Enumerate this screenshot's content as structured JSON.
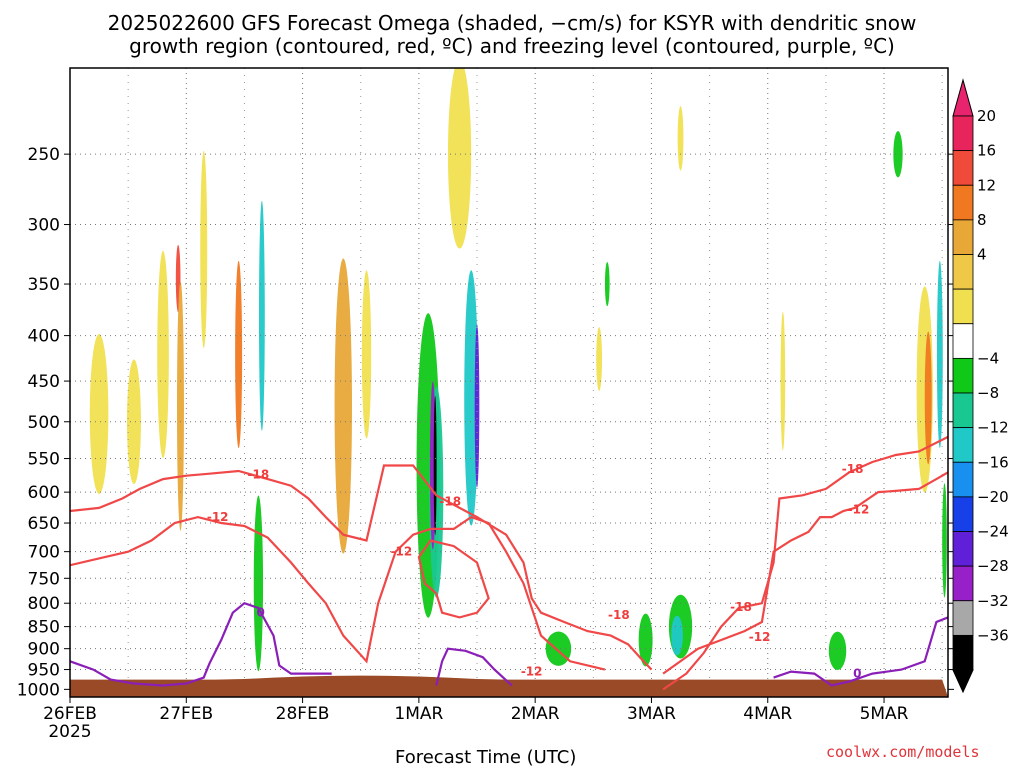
{
  "chart_data": {
    "type": "heatmap",
    "title_line1": "2025022600 GFS Forecast Omega (shaded, −cm/s) for KSYR with dendritic snow",
    "title_line2": "growth region (contoured, red, ºC) and freezing level (contoured, purple, ºC)",
    "xlabel": "Forecast Time (UTC)",
    "ylabel": "",
    "credit": "coolwx.com/models",
    "x_ticks": [
      "26FEB",
      "27FEB",
      "28FEB",
      "1MAR",
      "2MAR",
      "3MAR",
      "4MAR",
      "5MAR"
    ],
    "x_year_label": "2025",
    "x_range_days": [
      0,
      7.55
    ],
    "y_ticks": [
      "250",
      "300",
      "350",
      "400",
      "450",
      "500",
      "550",
      "600",
      "650",
      "700",
      "750",
      "800",
      "850",
      "900",
      "950",
      "1000"
    ],
    "y_range_hpa": [
      200,
      1020
    ],
    "y_scale": "log-pressure",
    "grid": true,
    "colorbar": {
      "labels": [
        "20",
        "16",
        "12",
        "8",
        "4",
        "−4",
        "−8",
        "−12",
        "−16",
        "−20",
        "−24",
        "−28",
        "−32",
        "−36"
      ],
      "colors": [
        "#e8245c",
        "#f04a3a",
        "#f07820",
        "#e8a838",
        "#f0c848",
        "#f0e050",
        "#ffffff",
        "#10c818",
        "#18c890",
        "#20c8c8",
        "#1890f0",
        "#1840e8",
        "#6020d8",
        "#9820c8",
        "#a8a8a8",
        "#000000"
      ],
      "top_color": "#e8246e",
      "bottom_color": "#000000"
    },
    "contour_labels": [
      {
        "text": "-18",
        "day": 1.62,
        "hpa": 573
      },
      {
        "text": "-12",
        "day": 1.27,
        "hpa": 640
      },
      {
        "text": "-18",
        "day": 3.27,
        "hpa": 615
      },
      {
        "text": "-12",
        "day": 2.85,
        "hpa": 700
      },
      {
        "text": "-12",
        "day": 3.97,
        "hpa": 955
      },
      {
        "text": "-18",
        "day": 4.72,
        "hpa": 825
      },
      {
        "text": "-18",
        "day": 5.77,
        "hpa": 808
      },
      {
        "text": "-12",
        "day": 5.93,
        "hpa": 873
      },
      {
        "text": "-18",
        "day": 6.73,
        "hpa": 565
      },
      {
        "text": "-12",
        "day": 6.78,
        "hpa": 628
      },
      {
        "text": "0",
        "day": 1.64,
        "hpa": 820
      },
      {
        "text": "0",
        "day": 6.77,
        "hpa": 960
      }
    ],
    "red_contours": [
      {
        "name": "-18",
        "points": [
          [
            0,
            630
          ],
          [
            0.25,
            625
          ],
          [
            0.45,
            610
          ],
          [
            0.6,
            595
          ],
          [
            0.8,
            580
          ],
          [
            1.0,
            575
          ],
          [
            1.2,
            572
          ],
          [
            1.45,
            568
          ],
          [
            1.7,
            580
          ],
          [
            1.9,
            590
          ],
          [
            2.05,
            610
          ],
          [
            2.2,
            640
          ],
          [
            2.35,
            670
          ],
          [
            2.55,
            680
          ],
          [
            2.7,
            560
          ],
          [
            2.95,
            560
          ],
          [
            3.15,
            605
          ],
          [
            3.3,
            620
          ],
          [
            3.5,
            640
          ],
          [
            3.75,
            670
          ],
          [
            3.9,
            720
          ],
          [
            3.97,
            790
          ],
          [
            4.05,
            820
          ],
          [
            4.25,
            840
          ],
          [
            4.45,
            860
          ],
          [
            4.65,
            870
          ],
          [
            4.8,
            890
          ],
          [
            4.9,
            920
          ],
          [
            5.0,
            950
          ]
        ]
      },
      {
        "name": "-12",
        "points": [
          [
            0,
            725
          ],
          [
            0.3,
            710
          ],
          [
            0.5,
            700
          ],
          [
            0.7,
            680
          ],
          [
            0.9,
            650
          ],
          [
            1.1,
            640
          ],
          [
            1.3,
            650
          ],
          [
            1.5,
            655
          ],
          [
            1.7,
            675
          ],
          [
            1.9,
            720
          ],
          [
            2.05,
            760
          ],
          [
            2.2,
            800
          ],
          [
            2.35,
            870
          ],
          [
            2.55,
            930
          ],
          [
            2.65,
            800
          ],
          [
            2.8,
            700
          ],
          [
            2.95,
            670
          ],
          [
            3.1,
            660
          ],
          [
            3.3,
            660
          ],
          [
            3.45,
            640
          ],
          [
            3.6,
            650
          ],
          [
            3.75,
            700
          ],
          [
            3.9,
            760
          ],
          [
            4.05,
            870
          ],
          [
            4.3,
            930
          ],
          [
            4.6,
            950
          ]
        ]
      },
      {
        "name": "-18 right",
        "points": [
          [
            5.1,
            1000
          ],
          [
            5.3,
            960
          ],
          [
            5.45,
            910
          ],
          [
            5.6,
            850
          ],
          [
            5.75,
            810
          ],
          [
            5.95,
            800
          ],
          [
            6.05,
            720
          ],
          [
            6.1,
            610
          ],
          [
            6.3,
            605
          ],
          [
            6.5,
            595
          ],
          [
            6.7,
            570
          ],
          [
            6.9,
            555
          ],
          [
            7.1,
            545
          ],
          [
            7.3,
            540
          ],
          [
            7.55,
            520
          ]
        ]
      },
      {
        "name": "-12 right",
        "points": [
          [
            5.1,
            960
          ],
          [
            5.4,
            900
          ],
          [
            5.6,
            880
          ],
          [
            5.8,
            860
          ],
          [
            5.95,
            840
          ],
          [
            6.05,
            700
          ],
          [
            6.2,
            680
          ],
          [
            6.35,
            665
          ],
          [
            6.45,
            640
          ],
          [
            6.55,
            640
          ],
          [
            6.65,
            630
          ],
          [
            6.75,
            625
          ],
          [
            6.95,
            600
          ],
          [
            7.1,
            598
          ],
          [
            7.3,
            595
          ],
          [
            7.45,
            580
          ],
          [
            7.55,
            570
          ]
        ]
      },
      {
        "name": "-18 loop",
        "points": [
          [
            3.15,
            780
          ],
          [
            3.05,
            760
          ],
          [
            3.0,
            710
          ],
          [
            3.1,
            680
          ],
          [
            3.3,
            690
          ],
          [
            3.5,
            720
          ],
          [
            3.6,
            790
          ],
          [
            3.5,
            820
          ],
          [
            3.35,
            830
          ],
          [
            3.2,
            820
          ],
          [
            3.15,
            780
          ]
        ]
      }
    ],
    "purple_contours": [
      {
        "name": "0 left",
        "points": [
          [
            0,
            930
          ],
          [
            0.2,
            950
          ],
          [
            0.35,
            975
          ],
          [
            0.55,
            985
          ],
          [
            0.8,
            990
          ],
          [
            1.0,
            985
          ],
          [
            1.15,
            970
          ],
          [
            1.2,
            935
          ],
          [
            1.3,
            880
          ],
          [
            1.4,
            820
          ],
          [
            1.5,
            800
          ],
          [
            1.62,
            810
          ],
          [
            1.75,
            870
          ],
          [
            1.8,
            940
          ],
          [
            1.9,
            960
          ],
          [
            2.05,
            960
          ],
          [
            2.25,
            960
          ]
        ]
      },
      {
        "name": "0 mid",
        "points": [
          [
            3.15,
            990
          ],
          [
            3.2,
            930
          ],
          [
            3.25,
            900
          ],
          [
            3.4,
            905
          ],
          [
            3.55,
            920
          ],
          [
            3.65,
            950
          ],
          [
            3.8,
            990
          ]
        ]
      },
      {
        "name": "0 right",
        "points": [
          [
            6.05,
            970
          ],
          [
            6.2,
            955
          ],
          [
            6.4,
            960
          ],
          [
            6.55,
            990
          ],
          [
            6.7,
            980
          ],
          [
            6.9,
            960
          ],
          [
            7.15,
            950
          ],
          [
            7.35,
            930
          ],
          [
            7.45,
            840
          ],
          [
            7.55,
            830
          ]
        ]
      }
    ],
    "shaded_blobs": [
      {
        "day": 0.25,
        "hpa": 490,
        "w": 0.16,
        "h": 200,
        "class": "4-8"
      },
      {
        "day": 0.55,
        "hpa": 500,
        "w": 0.12,
        "h": 160,
        "class": "4-8"
      },
      {
        "day": 0.8,
        "hpa": 420,
        "w": 0.1,
        "h": 220,
        "class": "4-8"
      },
      {
        "day": 0.93,
        "hpa": 345,
        "w": 0.04,
        "h": 60,
        "class": "16-20"
      },
      {
        "day": 0.95,
        "hpa": 480,
        "w": 0.06,
        "h": 300,
        "class": "8-12"
      },
      {
        "day": 1.15,
        "hpa": 320,
        "w": 0.06,
        "h": 160,
        "class": "4-8"
      },
      {
        "day": 1.45,
        "hpa": 420,
        "w": 0.06,
        "h": 200,
        "class": "12-16"
      },
      {
        "day": 1.62,
        "hpa": 760,
        "w": 0.08,
        "h": 340,
        "class": "-4-8"
      },
      {
        "day": 1.65,
        "hpa": 380,
        "w": 0.05,
        "h": 220,
        "class": "-12-16"
      },
      {
        "day": 2.35,
        "hpa": 480,
        "w": 0.15,
        "h": 350,
        "class": "8-12"
      },
      {
        "day": 2.55,
        "hpa": 420,
        "w": 0.08,
        "h": 180,
        "class": "4-8"
      },
      {
        "day": 3.08,
        "hpa": 560,
        "w": 0.2,
        "h": 420,
        "class": "-4-8"
      },
      {
        "day": 3.15,
        "hpa": 600,
        "w": 0.12,
        "h": 320,
        "class": "-8-12"
      },
      {
        "day": 3.12,
        "hpa": 560,
        "w": 0.05,
        "h": 240,
        "class": "-28-32"
      },
      {
        "day": 3.14,
        "hpa": 560,
        "w": 0.025,
        "h": 200,
        "class": "black"
      },
      {
        "day": 3.45,
        "hpa": 470,
        "w": 0.12,
        "h": 300,
        "class": "-12-16"
      },
      {
        "day": 3.5,
        "hpa": 480,
        "w": 0.04,
        "h": 200,
        "class": "-24-28"
      },
      {
        "day": 3.35,
        "hpa": 250,
        "w": 0.2,
        "h": 120,
        "class": "4-8"
      },
      {
        "day": 4.2,
        "hpa": 900,
        "w": 0.22,
        "h": 80,
        "class": "-4-8"
      },
      {
        "day": 4.62,
        "hpa": 350,
        "w": 0.04,
        "h": 40,
        "class": "-4-8"
      },
      {
        "day": 4.55,
        "hpa": 425,
        "w": 0.05,
        "h": 70,
        "class": "4-8"
      },
      {
        "day": 4.95,
        "hpa": 880,
        "w": 0.12,
        "h": 120,
        "class": "-4-8"
      },
      {
        "day": 5.25,
        "hpa": 850,
        "w": 0.2,
        "h": 140,
        "class": "-4-8"
      },
      {
        "day": 5.22,
        "hpa": 870,
        "w": 0.1,
        "h": 90,
        "class": "-12-16"
      },
      {
        "day": 5.25,
        "hpa": 240,
        "w": 0.05,
        "h": 40,
        "class": "4-8"
      },
      {
        "day": 6.13,
        "hpa": 450,
        "w": 0.04,
        "h": 160,
        "class": "4-8"
      },
      {
        "day": 6.6,
        "hpa": 905,
        "w": 0.15,
        "h": 90,
        "class": "-4-8"
      },
      {
        "day": 7.12,
        "hpa": 250,
        "w": 0.08,
        "h": 30,
        "class": "-4-8"
      },
      {
        "day": 7.35,
        "hpa": 460,
        "w": 0.14,
        "h": 240,
        "class": "4-8"
      },
      {
        "day": 7.38,
        "hpa": 470,
        "w": 0.06,
        "h": 160,
        "class": "12-16"
      },
      {
        "day": 7.48,
        "hpa": 420,
        "w": 0.05,
        "h": 200,
        "class": "-12-16"
      },
      {
        "day": 7.52,
        "hpa": 680,
        "w": 0.04,
        "h": 200,
        "class": "-4-8"
      }
    ],
    "ground_hpa": 975
  }
}
